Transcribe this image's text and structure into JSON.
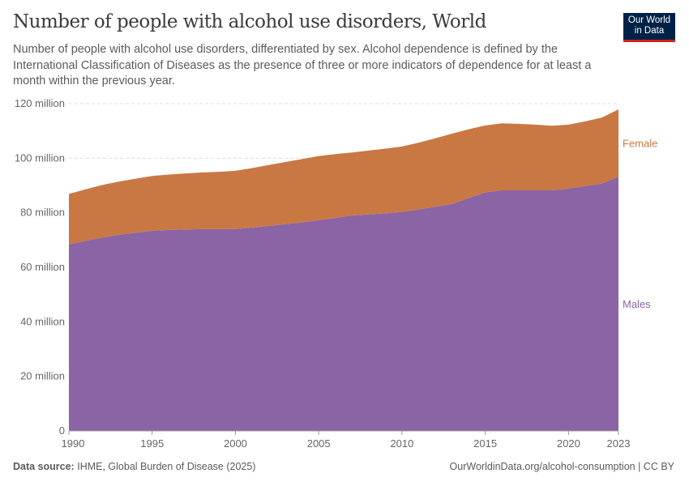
{
  "title": "Number of people with alcohol use disorders, World",
  "subtitle": "Number of people with alcohol use disorders, differentiated by sex. Alcohol dependence is defined by the International Classification of Diseases as the presence of three or more indicators of dependence for at least a month within the previous year.",
  "logo": "Our World in Data",
  "source_label": "Data source:",
  "source": "IHME, Global Burden of Disease (2025)",
  "credit": "OurWorldinData.org/alcohol-consumption | CC BY",
  "chart_data": {
    "type": "area",
    "stacked": true,
    "x": [
      1990,
      1991,
      1992,
      1993,
      1994,
      1995,
      1996,
      1997,
      1998,
      1999,
      2000,
      2001,
      2002,
      2003,
      2004,
      2005,
      2006,
      2007,
      2008,
      2009,
      2010,
      2011,
      2012,
      2013,
      2014,
      2015,
      2016,
      2017,
      2018,
      2019,
      2020,
      2021,
      2022,
      2023
    ],
    "series": [
      {
        "name": "Males",
        "color": "#8a64a5",
        "values": [
          68.4,
          69.7,
          70.9,
          71.9,
          72.7,
          73.4,
          73.7,
          73.9,
          74.0,
          74.0,
          74.0,
          74.6,
          75.2,
          75.8,
          76.5,
          77.3,
          78.1,
          79.0,
          79.4,
          79.8,
          80.3,
          81.2,
          82.2,
          83.2,
          85.4,
          87.5,
          88.2,
          88.2,
          88.2,
          88.2,
          88.9,
          89.8,
          90.7,
          93.2
        ]
      },
      {
        "name": "Female",
        "color": "#c97843",
        "values": [
          18.5,
          18.9,
          19.3,
          19.5,
          19.8,
          20.1,
          20.3,
          20.5,
          20.8,
          21.0,
          21.4,
          21.8,
          22.3,
          22.8,
          23.2,
          23.5,
          23.4,
          23.1,
          23.4,
          23.7,
          24.0,
          24.5,
          25.1,
          25.8,
          25.2,
          24.5,
          24.6,
          24.4,
          24.1,
          23.7,
          23.4,
          23.7,
          24.2,
          24.7
        ]
      }
    ],
    "unit": "million",
    "ylim": [
      0,
      120
    ],
    "yticks": [
      0,
      20,
      40,
      60,
      80,
      100,
      120
    ],
    "ytick_labels": [
      "0",
      "20 million",
      "40 million",
      "60 million",
      "80 million",
      "100 million",
      "120 million"
    ],
    "xticks": [
      1990,
      1995,
      2000,
      2005,
      2010,
      2015,
      2020,
      2023
    ],
    "xtick_labels": [
      "1990",
      "1995",
      "2000",
      "2005",
      "2010",
      "2015",
      "2020",
      "2023"
    ],
    "grid": "horizontal dashed",
    "legend": "right, inline labels"
  }
}
